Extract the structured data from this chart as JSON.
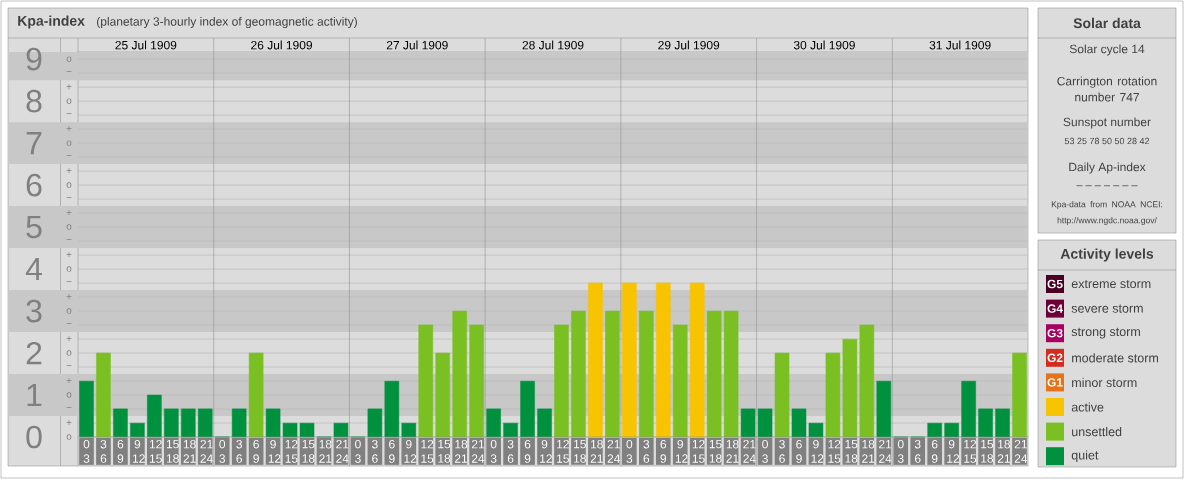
{
  "chart_data": {
    "type": "bar",
    "title": "Kpa-index",
    "subtitle": "(planetary 3-hourly index of geomagnetic activity)",
    "categories": [
      "0 3",
      "3 6",
      "6 9",
      "9 12",
      "12 15",
      "15 18",
      "18 21",
      "21 24",
      "0 3",
      "3 6",
      "6 9",
      "9 12",
      "12 15",
      "15 18",
      "18 21",
      "21 24",
      "0 3",
      "3 6",
      "6 9",
      "9 12",
      "12 15",
      "15 18",
      "18 21",
      "21 24",
      "0 3",
      "3 6",
      "6 9",
      "9 12",
      "12 15",
      "15 18",
      "18 21",
      "21 24",
      "0 3",
      "3 6",
      "6 9",
      "9 12",
      "12 15",
      "15 18",
      "18 21",
      "21 24",
      "0 3",
      "3 6",
      "6 9",
      "9 12",
      "12 15",
      "15 18",
      "18 21",
      "21 24",
      "0 3",
      "3 6",
      "6 9",
      "9 12",
      "12 15",
      "15 18",
      "18 21",
      "21 24"
    ],
    "series": [
      {
        "name": "extreme storm",
        "color": "#4a0022",
        "values": [
          null,
          null,
          null,
          null,
          null,
          null,
          null,
          null,
          null,
          null,
          null,
          null,
          null,
          null,
          null,
          null,
          null,
          null,
          null,
          null,
          null,
          null,
          null,
          null,
          null,
          null,
          null,
          null,
          null,
          null,
          null,
          null,
          null,
          null,
          null,
          null,
          null,
          null,
          null,
          null,
          null,
          null,
          null,
          null,
          null,
          null,
          null,
          null,
          null,
          null,
          null,
          null,
          null,
          null,
          null,
          null
        ]
      },
      {
        "name": "severe storm",
        "color": "#6c0036",
        "values": [
          null,
          null,
          null,
          null,
          null,
          null,
          null,
          null,
          null,
          null,
          null,
          null,
          null,
          null,
          null,
          null,
          null,
          null,
          null,
          null,
          null,
          null,
          null,
          null,
          null,
          null,
          null,
          null,
          null,
          null,
          null,
          null,
          null,
          null,
          null,
          null,
          null,
          null,
          null,
          null,
          null,
          null,
          null,
          null,
          null,
          null,
          null,
          null,
          null,
          null,
          null,
          null,
          null,
          null,
          null,
          null
        ]
      },
      {
        "name": "strong storm",
        "color": "#a8005e",
        "values": [
          null,
          null,
          null,
          null,
          null,
          null,
          null,
          null,
          null,
          null,
          null,
          null,
          null,
          null,
          null,
          null,
          null,
          null,
          null,
          null,
          null,
          null,
          null,
          null,
          null,
          null,
          null,
          null,
          null,
          null,
          null,
          null,
          null,
          null,
          null,
          null,
          null,
          null,
          null,
          null,
          null,
          null,
          null,
          null,
          null,
          null,
          null,
          null,
          null,
          null,
          null,
          null,
          null,
          null,
          null,
          null
        ]
      },
      {
        "name": "moderate storm",
        "color": "#d42c1c",
        "values": [
          null,
          null,
          null,
          null,
          null,
          null,
          null,
          null,
          null,
          null,
          null,
          null,
          null,
          null,
          null,
          null,
          null,
          null,
          null,
          null,
          null,
          null,
          null,
          null,
          null,
          null,
          null,
          null,
          null,
          null,
          null,
          null,
          null,
          null,
          null,
          null,
          null,
          null,
          null,
          null,
          null,
          null,
          null,
          null,
          null,
          null,
          null,
          null,
          null,
          null,
          null,
          null,
          null,
          null,
          null,
          null
        ]
      },
      {
        "name": "minor storm",
        "color": "#e5731a",
        "values": [
          null,
          null,
          null,
          null,
          null,
          null,
          null,
          null,
          null,
          null,
          null,
          null,
          null,
          null,
          null,
          null,
          null,
          null,
          null,
          null,
          null,
          null,
          null,
          null,
          null,
          null,
          null,
          null,
          null,
          null,
          null,
          null,
          null,
          null,
          null,
          null,
          null,
          null,
          null,
          null,
          null,
          null,
          null,
          null,
          null,
          null,
          null,
          null,
          null,
          null,
          null,
          null,
          null,
          null,
          null,
          null
        ]
      },
      {
        "name": "active",
        "color": "#f8c300",
        "values": [
          null,
          null,
          null,
          null,
          null,
          null,
          null,
          null,
          null,
          null,
          null,
          null,
          null,
          null,
          null,
          null,
          null,
          null,
          null,
          null,
          null,
          null,
          null,
          null,
          null,
          null,
          null,
          null,
          null,
          null,
          3.67,
          null,
          3.67,
          null,
          3.67,
          null,
          3.67,
          null,
          null,
          null,
          null,
          null,
          null,
          null,
          null,
          null,
          null,
          null,
          null,
          null,
          null,
          null,
          null,
          null,
          null,
          null
        ]
      },
      {
        "name": "unsettled",
        "color": "#7ac023",
        "values": [
          null,
          2,
          null,
          null,
          null,
          null,
          null,
          null,
          null,
          null,
          2,
          null,
          null,
          null,
          null,
          null,
          null,
          null,
          null,
          null,
          2.67,
          2,
          3,
          2.67,
          null,
          null,
          null,
          null,
          2.67,
          3,
          null,
          3,
          null,
          3,
          null,
          2.67,
          null,
          3,
          3,
          null,
          null,
          2,
          null,
          null,
          2,
          2.33,
          2.67,
          null,
          null,
          null,
          null,
          null,
          null,
          null,
          null,
          2
        ]
      },
      {
        "name": "quiet",
        "color": "#00913f",
        "values": [
          1.33,
          null,
          0.67,
          0.33,
          1,
          0.67,
          0.67,
          0.67,
          0,
          0.67,
          null,
          0.67,
          0.33,
          0.33,
          0,
          0.33,
          0,
          0.67,
          1.33,
          0.33,
          null,
          null,
          null,
          null,
          0.67,
          0.33,
          1.33,
          0.67,
          null,
          null,
          null,
          null,
          null,
          null,
          null,
          null,
          null,
          null,
          null,
          0.67,
          0.67,
          null,
          0.67,
          0.33,
          null,
          null,
          null,
          1.33,
          0,
          0,
          0.33,
          0.33,
          1.33,
          0.67,
          0.67,
          null
        ]
      }
    ],
    "ylim": [
      0,
      9.17
    ],
    "yticks": [
      0,
      1,
      2,
      3,
      4,
      5,
      6,
      7,
      8,
      9
    ],
    "bands": [
      {
        "axis": "y",
        "from": 0.5,
        "to": 1.5,
        "color": "#c8c8c8"
      },
      {
        "axis": "y",
        "from": 2.5,
        "to": 3.5,
        "color": "#c8c8c8"
      },
      {
        "axis": "y",
        "from": 4.5,
        "to": 5.5,
        "color": "#c8c8c8"
      },
      {
        "axis": "y",
        "from": 6.5,
        "to": 7.5,
        "color": "#c8c8c8"
      },
      {
        "axis": "y",
        "from": 8.5,
        "to": 9.17,
        "color": "#c8c8c8"
      }
    ],
    "grid": "y",
    "legend": "right",
    "legend_title": "Activity levels",
    "annotations": [
      "25 Jul 1909",
      "26 Jul 1909",
      "27 Jul 1909",
      "28 Jul 1909",
      "29 Jul 1909",
      "30 Jul 1909",
      "31 Jul 1909",
      "Solar data",
      "Solar cycle 14",
      "Carrington rotation number 747",
      "Sunspot number",
      "53  25  78  50  50  28  42",
      "Daily Ap-index",
      "–  –  –  –  –  –  –",
      "Kpa-data from NOAA NCEI: http://www.ngdc.noaa.gov/",
      "G5",
      "G4",
      "G3",
      "G2",
      "G1",
      "o",
      "+",
      "−",
      "o",
      "+",
      "−",
      "o",
      "+",
      "−",
      "o",
      "+",
      "−",
      "o",
      "+",
      "−",
      "o",
      "+",
      "−",
      "o",
      "+",
      "−",
      "o",
      "+",
      "−",
      "o",
      "+",
      "−",
      "o"
    ]
  }
}
